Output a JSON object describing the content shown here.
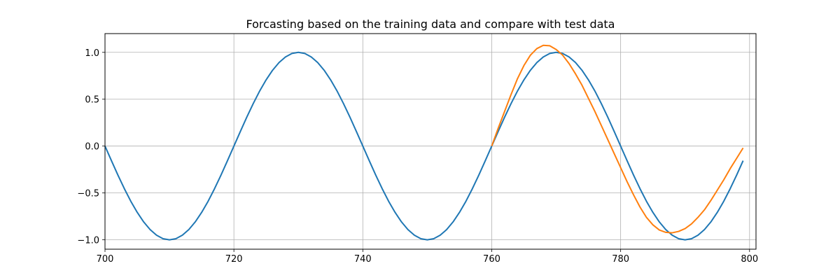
{
  "chart_data": {
    "type": "line",
    "title": "Forcasting based on the training data and compare with test data",
    "xlabel": "",
    "ylabel": "",
    "xlim": [
      700,
      801
    ],
    "ylim": [
      -1.1,
      1.2
    ],
    "x_ticks": [
      700,
      720,
      740,
      760,
      780,
      800
    ],
    "y_ticks": [
      -1.0,
      -0.5,
      0.0,
      0.5,
      1.0
    ],
    "x_tick_labels": [
      "700",
      "720",
      "740",
      "760",
      "780",
      "800"
    ],
    "y_tick_labels": [
      "−1.0",
      "−0.5",
      "0.0",
      "0.5",
      "1.0"
    ],
    "grid": true,
    "legend": "none",
    "series": [
      {
        "color": "#1f77b4",
        "x": [
          700,
          701,
          702,
          703,
          704,
          705,
          706,
          707,
          708,
          709,
          710,
          711,
          712,
          713,
          714,
          715,
          716,
          717,
          718,
          719,
          720,
          721,
          722,
          723,
          724,
          725,
          726,
          727,
          728,
          729,
          730,
          731,
          732,
          733,
          734,
          735,
          736,
          737,
          738,
          739,
          740,
          741,
          742,
          743,
          744,
          745,
          746,
          747,
          748,
          749,
          750,
          751,
          752,
          753,
          754,
          755,
          756,
          757,
          758,
          759,
          760,
          761,
          762,
          763,
          764,
          765,
          766,
          767,
          768,
          769,
          770,
          771,
          772,
          773,
          774,
          775,
          776,
          777,
          778,
          779,
          780,
          781,
          782,
          783,
          784,
          785,
          786,
          787,
          788,
          789,
          790,
          791,
          792,
          793,
          794,
          795,
          796,
          797,
          798,
          799
        ],
        "y": [
          0.0,
          -0.156,
          -0.309,
          -0.454,
          -0.588,
          -0.707,
          -0.809,
          -0.891,
          -0.951,
          -0.988,
          -1.0,
          -0.988,
          -0.951,
          -0.891,
          -0.809,
          -0.707,
          -0.588,
          -0.454,
          -0.309,
          -0.156,
          0.0,
          0.156,
          0.309,
          0.454,
          0.588,
          0.707,
          0.809,
          0.891,
          0.951,
          0.988,
          1.0,
          0.988,
          0.951,
          0.891,
          0.809,
          0.707,
          0.588,
          0.454,
          0.309,
          0.156,
          0.0,
          -0.156,
          -0.309,
          -0.454,
          -0.588,
          -0.707,
          -0.809,
          -0.891,
          -0.951,
          -0.988,
          -1.0,
          -0.988,
          -0.951,
          -0.891,
          -0.809,
          -0.707,
          -0.588,
          -0.454,
          -0.309,
          -0.156,
          0.0,
          0.156,
          0.309,
          0.454,
          0.588,
          0.707,
          0.809,
          0.891,
          0.951,
          0.988,
          1.0,
          0.988,
          0.951,
          0.891,
          0.809,
          0.707,
          0.588,
          0.454,
          0.309,
          0.156,
          0.0,
          -0.156,
          -0.309,
          -0.454,
          -0.588,
          -0.707,
          -0.809,
          -0.891,
          -0.951,
          -0.988,
          -1.0,
          -0.988,
          -0.951,
          -0.891,
          -0.809,
          -0.707,
          -0.588,
          -0.454,
          -0.309,
          -0.156
        ]
      },
      {
        "color": "#ff7f0e",
        "x": [
          760,
          761,
          762,
          763,
          764,
          765,
          766,
          767,
          768,
          769,
          770,
          771,
          772,
          773,
          774,
          775,
          776,
          777,
          778,
          779,
          780,
          781,
          782,
          783,
          784,
          785,
          786,
          787,
          788,
          789,
          790,
          791,
          792,
          793,
          794,
          795,
          796,
          797,
          798,
          799
        ],
        "y": [
          0.0,
          0.19,
          0.37,
          0.55,
          0.72,
          0.86,
          0.97,
          1.04,
          1.075,
          1.07,
          1.03,
          0.97,
          0.88,
          0.77,
          0.65,
          0.51,
          0.37,
          0.22,
          0.07,
          -0.08,
          -0.23,
          -0.38,
          -0.52,
          -0.65,
          -0.76,
          -0.84,
          -0.895,
          -0.92,
          -0.925,
          -0.91,
          -0.88,
          -0.83,
          -0.76,
          -0.68,
          -0.58,
          -0.47,
          -0.36,
          -0.24,
          -0.13,
          -0.02
        ]
      }
    ]
  }
}
